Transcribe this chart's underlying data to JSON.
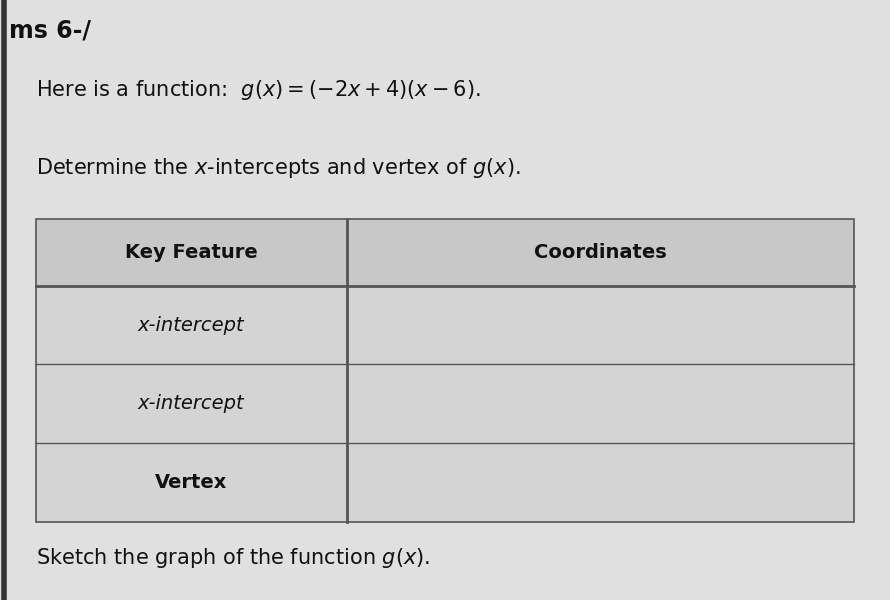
{
  "background_color": "#e0e0e0",
  "title_text": "ms 6-/",
  "title_fontsize": 17,
  "line1": "Here is a function:  $g(x) = (-2x+4)(x-6)$.",
  "line2": "Determine the $x$-intercepts and vertex of $g(x)$.",
  "line3": "Sketch the graph of the function $g(x)$.",
  "table_header": [
    "Key Feature",
    "Coordinates"
  ],
  "table_rows": [
    "x-intercept",
    "x-intercept",
    "Vertex"
  ],
  "table_header_bg": "#c8c8c8",
  "table_row_bg": "#d4d4d4",
  "table_border_color": "#555555",
  "text_color": "#111111",
  "line_font_size": 15,
  "row_font_size": 14,
  "left_bar_color": "#333333",
  "left_bar_width": 4
}
